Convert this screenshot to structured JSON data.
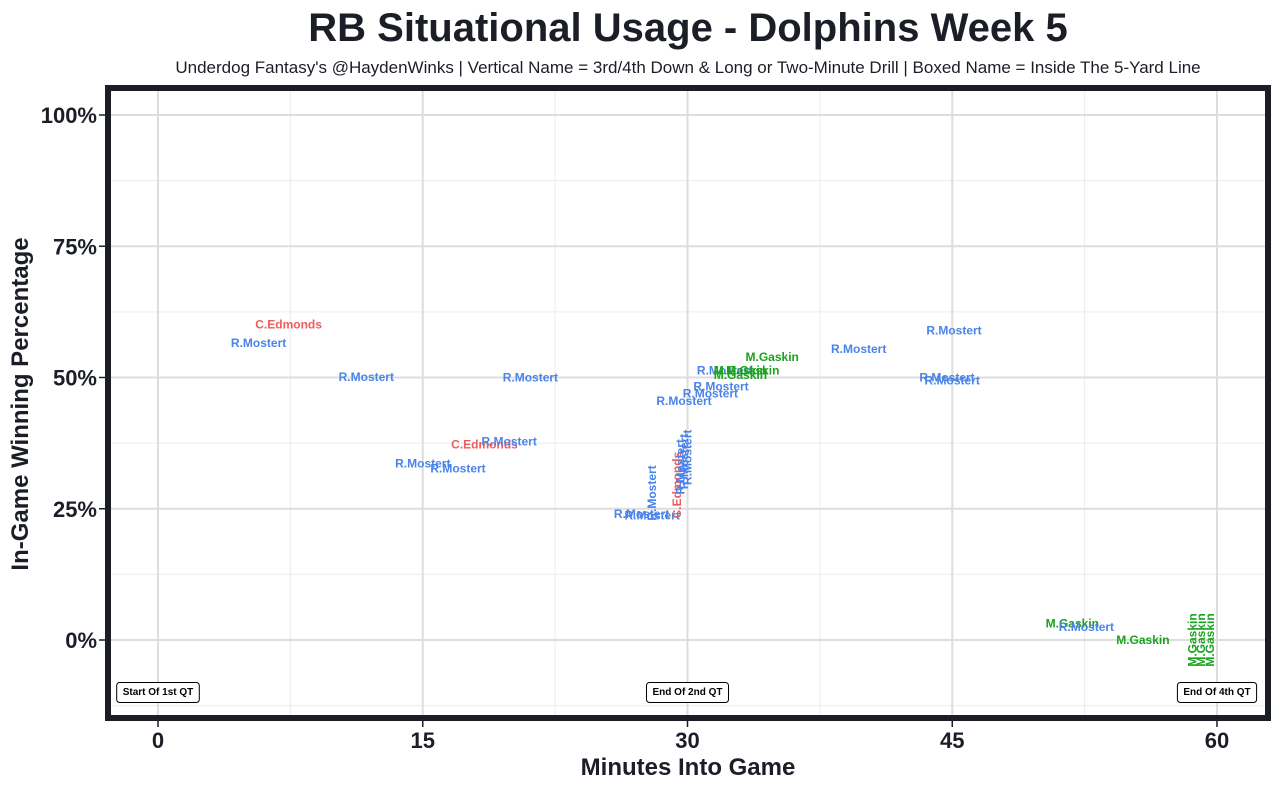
{
  "title": "RB Situational Usage - Dolphins Week 5",
  "subtitle": "Underdog Fantasy's @HaydenWinks | Vertical Name = 3rd/4th Down & Long or Two-Minute Drill | Boxed Name = Inside The 5-Yard Line",
  "chart_data": {
    "type": "scatter",
    "title": "RB Situational Usage - Dolphins Week 5",
    "subtitle": "Underdog Fantasy's @HaydenWinks | Vertical Name = 3rd/4th Down & Long or Two-Minute Drill | Boxed Name = Inside The 5-Yard Line",
    "xlabel": "Minutes Into Game",
    "ylabel": "In-Game Winning Percentage",
    "xlim": [
      -5,
      63
    ],
    "ylim": [
      -15,
      105
    ],
    "x_ticks": [
      0,
      15,
      30,
      45,
      60
    ],
    "x_tick_labels": [
      "0",
      "15",
      "30",
      "45",
      "60"
    ],
    "y_ticks": [
      0,
      25,
      50,
      75,
      100
    ],
    "y_tick_labels": [
      "0%",
      "25%",
      "50%",
      "75%",
      "100%"
    ],
    "grid": true,
    "colors": {
      "C.Edmonds": "#ee5a5a",
      "R.Mostert": "#4a84e8",
      "M.Gaskin": "#1aa31e"
    },
    "points": [
      {
        "player": "C.Edmonds",
        "x": 7.4,
        "y": 60.1,
        "vertical": false
      },
      {
        "player": "R.Mostert",
        "x": 5.7,
        "y": 56.6,
        "vertical": false
      },
      {
        "player": "R.Mostert",
        "x": 11.8,
        "y": 50.1,
        "vertical": false
      },
      {
        "player": "R.Mostert",
        "x": 21.1,
        "y": 50.0,
        "vertical": false
      },
      {
        "player": "C.Edmonds",
        "x": 18.5,
        "y": 37.2,
        "vertical": false
      },
      {
        "player": "R.Mostert",
        "x": 19.9,
        "y": 37.8,
        "vertical": false
      },
      {
        "player": "R.Mostert",
        "x": 15.0,
        "y": 33.6,
        "vertical": false
      },
      {
        "player": "R.Mostert",
        "x": 17.0,
        "y": 32.7,
        "vertical": false
      },
      {
        "player": "R.Mostert",
        "x": 27.4,
        "y": 24.0,
        "vertical": false
      },
      {
        "player": "R.Mostert",
        "x": 28.0,
        "y": 23.7,
        "vertical": false
      },
      {
        "player": "R.Mostert",
        "x": 28.0,
        "y": 28.0,
        "vertical": true
      },
      {
        "player": "C.Edmonds",
        "x": 29.4,
        "y": 29.5,
        "vertical": true
      },
      {
        "player": "R.Mostert",
        "x": 29.6,
        "y": 33.0,
        "vertical": true
      },
      {
        "player": "R.Mostert",
        "x": 29.8,
        "y": 34.0,
        "vertical": true
      },
      {
        "player": "R.Mostert",
        "x": 30.0,
        "y": 34.8,
        "vertical": true
      },
      {
        "player": "R.Mostert",
        "x": 29.8,
        "y": 45.5,
        "vertical": false
      },
      {
        "player": "R.Mostert",
        "x": 31.3,
        "y": 47.0,
        "vertical": false
      },
      {
        "player": "R.Mostert",
        "x": 31.9,
        "y": 48.3,
        "vertical": false
      },
      {
        "player": "R.Mostert",
        "x": 32.1,
        "y": 51.3,
        "vertical": false
      },
      {
        "player": "M.Gaskin",
        "x": 33.0,
        "y": 51.3,
        "vertical": false
      },
      {
        "player": "M.Gaskin",
        "x": 33.7,
        "y": 51.3,
        "vertical": false
      },
      {
        "player": "M.Gaskin",
        "x": 33.0,
        "y": 50.5,
        "vertical": false
      },
      {
        "player": "M.Gaskin",
        "x": 34.8,
        "y": 53.9,
        "vertical": false
      },
      {
        "player": "R.Mostert",
        "x": 39.7,
        "y": 55.4,
        "vertical": false
      },
      {
        "player": "R.Mostert",
        "x": 45.1,
        "y": 59.0,
        "vertical": false
      },
      {
        "player": "R.Mostert",
        "x": 44.7,
        "y": 50.0,
        "vertical": false
      },
      {
        "player": "R.Mostert",
        "x": 45.0,
        "y": 49.4,
        "vertical": false
      },
      {
        "player": "M.Gaskin",
        "x": 51.8,
        "y": 3.1,
        "vertical": false
      },
      {
        "player": "R.Mostert",
        "x": 52.6,
        "y": 2.5,
        "vertical": false
      },
      {
        "player": "M.Gaskin",
        "x": 55.8,
        "y": 0.0,
        "vertical": false
      },
      {
        "player": "M.Gaskin",
        "x": 58.6,
        "y": 0.0,
        "vertical": true
      },
      {
        "player": "M.Gaskin",
        "x": 59.1,
        "y": 0.0,
        "vertical": true
      },
      {
        "player": "M.Gaskin",
        "x": 59.6,
        "y": 0.0,
        "vertical": true
      }
    ],
    "annotations": [
      {
        "label": "Start Of 1st QT",
        "x": 0,
        "y": -10
      },
      {
        "label": "End Of 2nd QT",
        "x": 30,
        "y": -10
      },
      {
        "label": "End Of 4th QT",
        "x": 60,
        "y": -10
      }
    ]
  }
}
